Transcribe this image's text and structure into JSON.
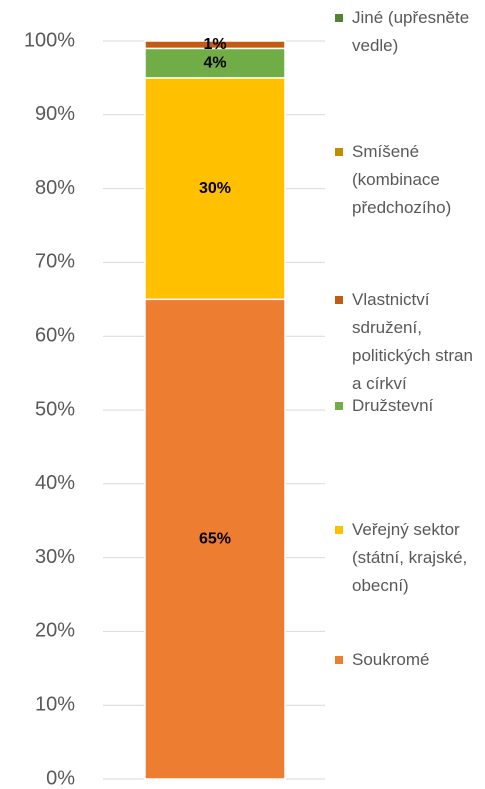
{
  "chart_data": {
    "type": "stacked-bar",
    "series": [
      {
        "name": "Soukromé",
        "color": "#ED7D31",
        "values": [
          65
        ],
        "value_labels": [
          "65%"
        ]
      },
      {
        "name": "Veřejný sektor (státní, krajské, obecní)",
        "color": "#FFC000",
        "values": [
          30
        ],
        "value_labels": [
          "30%"
        ]
      },
      {
        "name": "Družstevní",
        "color": "#70AD47",
        "values": [
          4
        ],
        "value_labels": [
          "4%"
        ]
      },
      {
        "name": "Vlastnictví sdružení, politických stran a církví",
        "color": "#C55A11",
        "values": [
          1
        ],
        "value_labels": [
          "1%"
        ]
      },
      {
        "name": "Smíšené (kombinace předchozího)",
        "color": "#BF9000",
        "values": [
          0
        ]
      },
      {
        "name": "Jiné (upřesněte vedle)",
        "color": "#548235",
        "values": [
          0
        ]
      }
    ],
    "ylim": [
      0,
      100
    ],
    "yticks": [
      {
        "value": 0,
        "label": "0%"
      },
      {
        "value": 10,
        "label": "10%"
      },
      {
        "value": 20,
        "label": "20%"
      },
      {
        "value": 30,
        "label": "30%"
      },
      {
        "value": 40,
        "label": "40%"
      },
      {
        "value": 50,
        "label": "50%"
      },
      {
        "value": 60,
        "label": "60%"
      },
      {
        "value": 70,
        "label": "70%"
      },
      {
        "value": 80,
        "label": "80%"
      },
      {
        "value": 90,
        "label": "90%"
      },
      {
        "value": 100,
        "label": "100%"
      }
    ],
    "grid": true
  }
}
